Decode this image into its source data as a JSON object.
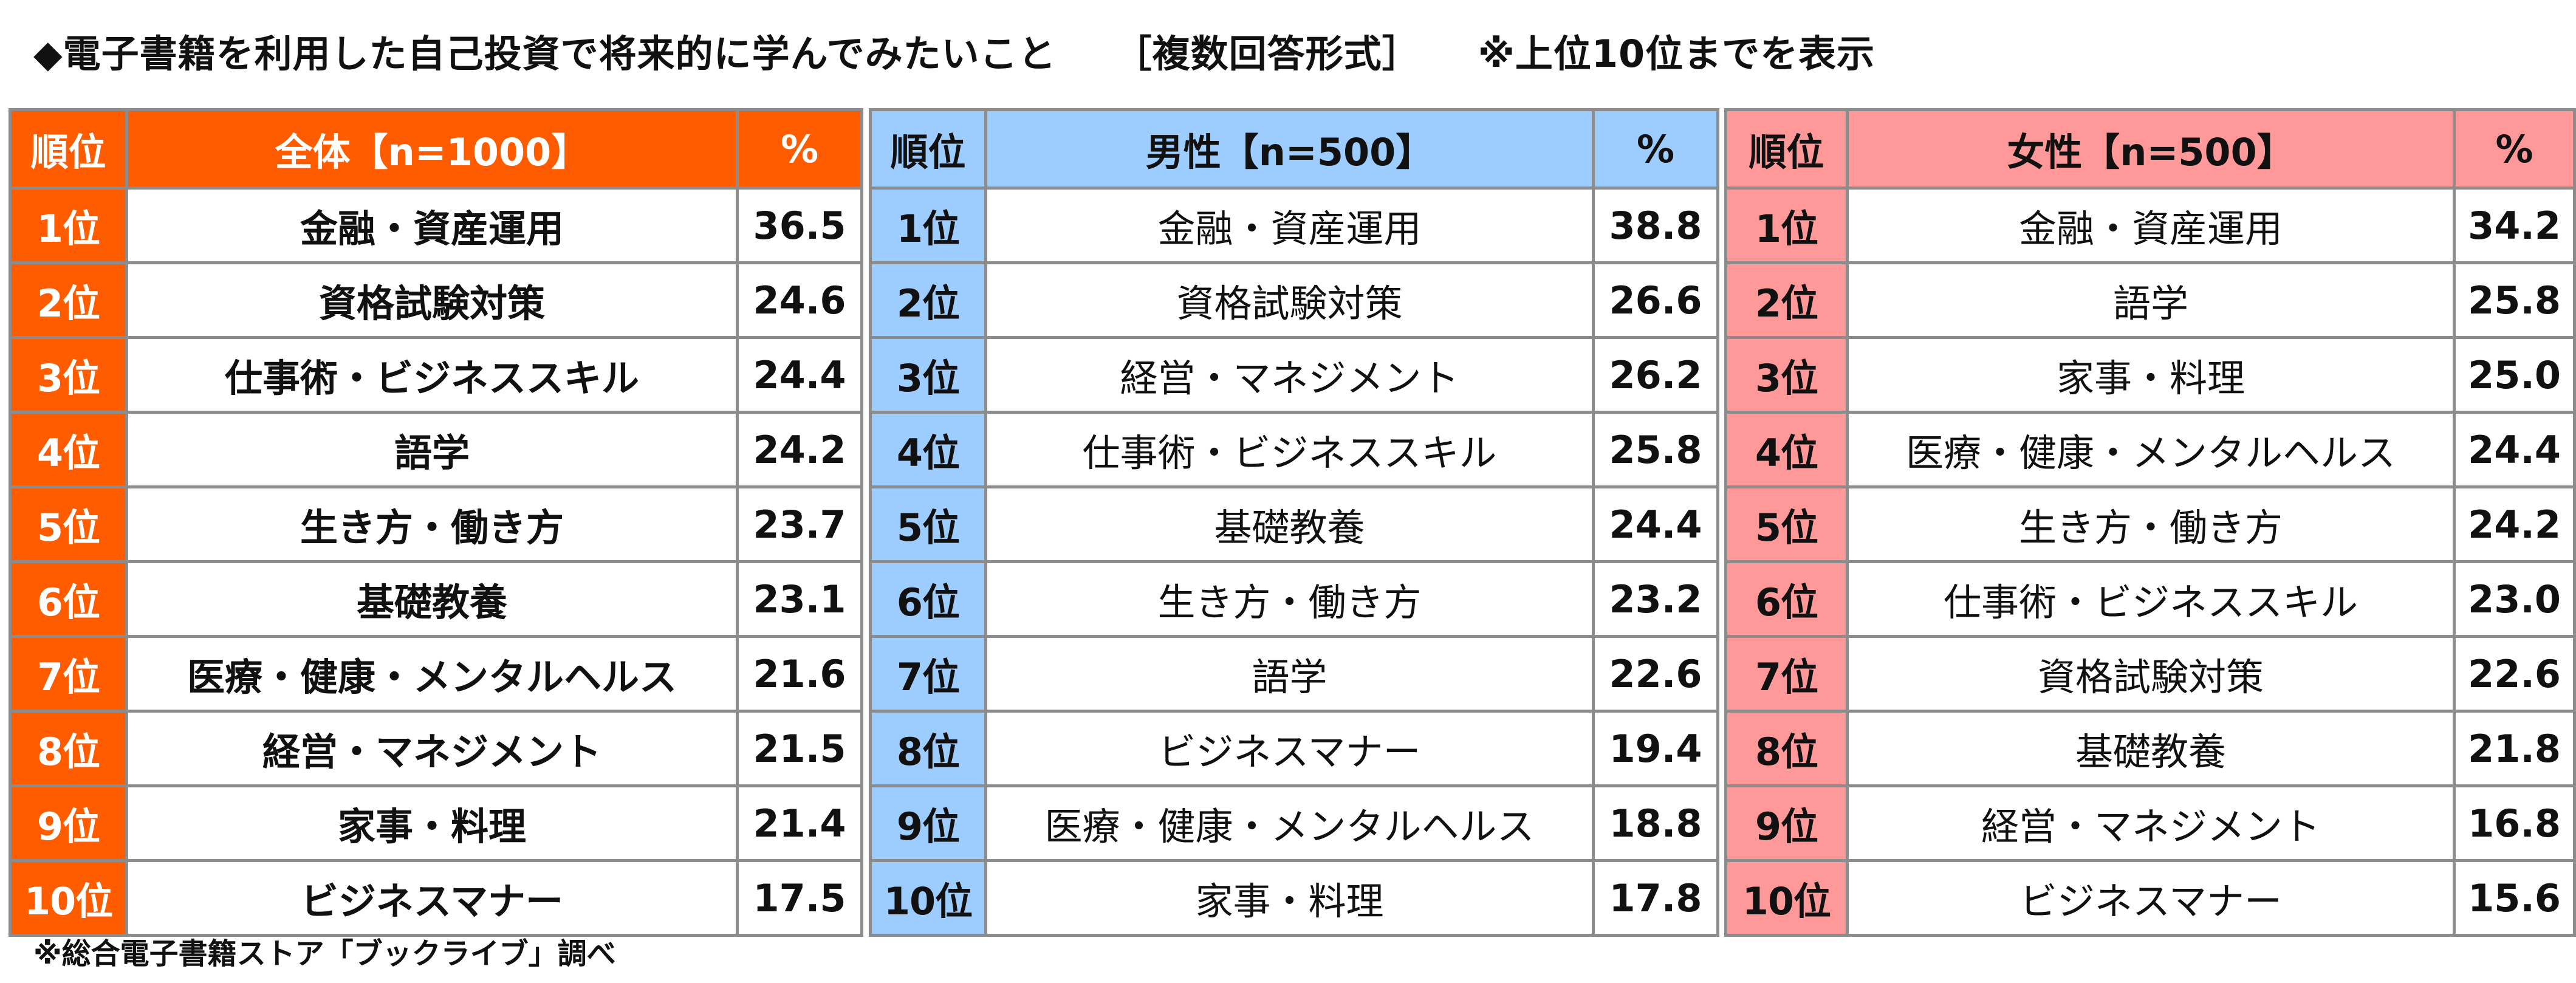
{
  "title": {
    "main": "◆電子書籍を利用した自己投資で将来的に学んでみたいこと",
    "format": "［複数回答形式］",
    "note": "※上位10位までを表示"
  },
  "footer": "※総合電子書籍ストア「ブックライブ」調べ",
  "colors": {
    "all_accent": "#ff5c00",
    "male_accent": "#9dccff",
    "female_accent": "#ff9999",
    "border": "#8c8c8c"
  },
  "tables": {
    "all": {
      "header_rank": "順位",
      "header_group": "全体【n=1000】",
      "header_pct": "%",
      "rows": [
        {
          "rank": "1位",
          "item": "金融・資産運用",
          "value": "36.5"
        },
        {
          "rank": "2位",
          "item": "資格試験対策",
          "value": "24.6"
        },
        {
          "rank": "3位",
          "item": "仕事術・ビジネススキル",
          "value": "24.4"
        },
        {
          "rank": "4位",
          "item": "語学",
          "value": "24.2"
        },
        {
          "rank": "5位",
          "item": "生き方・働き方",
          "value": "23.7"
        },
        {
          "rank": "6位",
          "item": "基礎教養",
          "value": "23.1"
        },
        {
          "rank": "7位",
          "item": "医療・健康・メンタルヘルス",
          "value": "21.6"
        },
        {
          "rank": "8位",
          "item": "経営・マネジメント",
          "value": "21.5"
        },
        {
          "rank": "9位",
          "item": "家事・料理",
          "value": "21.4"
        },
        {
          "rank": "10位",
          "item": "ビジネスマナー",
          "value": "17.5"
        }
      ]
    },
    "male": {
      "header_rank": "順位",
      "header_group": "男性【n=500】",
      "header_pct": "%",
      "rows": [
        {
          "rank": "1位",
          "item": "金融・資産運用",
          "value": "38.8"
        },
        {
          "rank": "2位",
          "item": "資格試験対策",
          "value": "26.6"
        },
        {
          "rank": "3位",
          "item": "経営・マネジメント",
          "value": "26.2"
        },
        {
          "rank": "4位",
          "item": "仕事術・ビジネススキル",
          "value": "25.8"
        },
        {
          "rank": "5位",
          "item": "基礎教養",
          "value": "24.4"
        },
        {
          "rank": "6位",
          "item": "生き方・働き方",
          "value": "23.2"
        },
        {
          "rank": "7位",
          "item": "語学",
          "value": "22.6"
        },
        {
          "rank": "8位",
          "item": "ビジネスマナー",
          "value": "19.4"
        },
        {
          "rank": "9位",
          "item": "医療・健康・メンタルヘルス",
          "value": "18.8"
        },
        {
          "rank": "10位",
          "item": "家事・料理",
          "value": "17.8"
        }
      ]
    },
    "female": {
      "header_rank": "順位",
      "header_group": "女性【n=500】",
      "header_pct": "%",
      "rows": [
        {
          "rank": "1位",
          "item": "金融・資産運用",
          "value": "34.2"
        },
        {
          "rank": "2位",
          "item": "語学",
          "value": "25.8"
        },
        {
          "rank": "3位",
          "item": "家事・料理",
          "value": "25.0"
        },
        {
          "rank": "4位",
          "item": "医療・健康・メンタルヘルス",
          "value": "24.4"
        },
        {
          "rank": "5位",
          "item": "生き方・働き方",
          "value": "24.2"
        },
        {
          "rank": "6位",
          "item": "仕事術・ビジネススキル",
          "value": "23.0"
        },
        {
          "rank": "7位",
          "item": "資格試験対策",
          "value": "22.6"
        },
        {
          "rank": "8位",
          "item": "基礎教養",
          "value": "21.8"
        },
        {
          "rank": "9位",
          "item": "経営・マネジメント",
          "value": "16.8"
        },
        {
          "rank": "10位",
          "item": "ビジネスマナー",
          "value": "15.6"
        }
      ]
    }
  }
}
